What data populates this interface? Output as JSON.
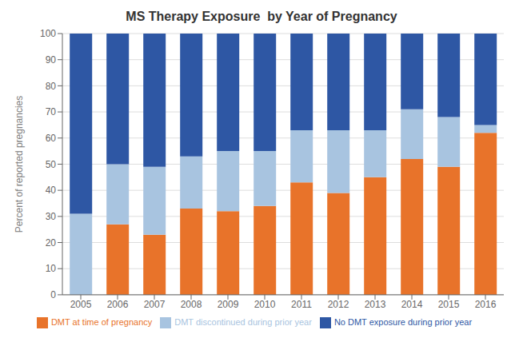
{
  "chart_data": {
    "type": "bar",
    "title": "MS Therapy Exposure  by Year of Pregnancy",
    "ylabel": "Percent of reported pregnancies",
    "categories": [
      "2005",
      "2006",
      "2007",
      "2008",
      "2009",
      "2010",
      "2011",
      "2012",
      "2013",
      "2014",
      "2015",
      "2016"
    ],
    "series": [
      {
        "name": "DMT at time of pregnancy",
        "color": "#E8732A",
        "values": [
          0,
          27,
          23,
          33,
          32,
          34,
          43,
          39,
          45,
          52,
          49,
          62
        ]
      },
      {
        "name": "DMT discontinued during prior year",
        "color": "#A8C4E0",
        "values": [
          31,
          23,
          26,
          20,
          23,
          21,
          20,
          24,
          18,
          19,
          19,
          3
        ]
      },
      {
        "name": "No DMT exposure during prior year",
        "color": "#2E57A4",
        "values": [
          69,
          50,
          51,
          47,
          45,
          45,
          37,
          37,
          37,
          29,
          32,
          35
        ]
      }
    ],
    "ylim": [
      0,
      100
    ],
    "yticks": [
      0,
      10,
      20,
      30,
      40,
      50,
      60,
      70,
      80,
      90,
      100
    ],
    "stacked": true,
    "grid": true,
    "legend": "bottom"
  }
}
